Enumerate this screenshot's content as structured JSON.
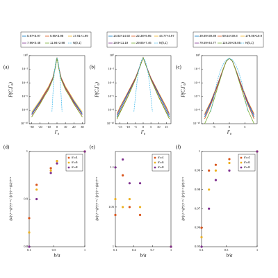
{
  "chart_data": [
    {
      "type": "line",
      "panel_label": "(a)",
      "xlabel": "Γ₀",
      "ylabel": "P(C,Γ₀)",
      "yscale": "log",
      "xlim": [
        -33,
        33
      ],
      "xticks": [
        -30,
        -20,
        -10,
        0,
        10,
        20,
        30
      ],
      "ylim": [
        1e-10,
        1
      ],
      "yticks": [
        {
          "value": 1e-10,
          "label": "10⁻¹⁰"
        },
        {
          "value": 1e-08,
          "label": "10⁻⁸"
        },
        {
          "value": 1e-06,
          "label": "10⁻⁶"
        },
        {
          "value": 0.0001,
          "label": "10⁻⁴"
        },
        {
          "value": 0.01,
          "label": "10⁻²"
        },
        {
          "value": 1,
          "label": "10⁰"
        }
      ],
      "series": [
        {
          "name": "5.97×5.97",
          "color": "#0072bd",
          "x": [
            -30,
            -20,
            -15,
            -10,
            -5,
            -2,
            0,
            2,
            5,
            10,
            15,
            20,
            30
          ],
          "values": [
            3e-09,
            2e-07,
            2e-06,
            2e-05,
            0.0005,
            0.02,
            0.5,
            0.02,
            0.0005,
            2e-05,
            2e-06,
            2e-07,
            3e-09
          ]
        },
        {
          "name": "6.95×3.98",
          "color": "#d95319",
          "x": [
            -30,
            -20,
            -15,
            -10,
            -5,
            -2,
            0,
            2,
            5,
            10,
            15,
            20,
            30
          ],
          "values": [
            1e-09,
            1e-07,
            1.5e-06,
            1.5e-05,
            0.0004,
            0.02,
            0.5,
            0.02,
            0.0004,
            1.5e-05,
            1.5e-06,
            1e-07,
            1e-09
          ]
        },
        {
          "name": "17.91×1.99",
          "color": "#edb120",
          "x": [
            -30,
            -20,
            -15,
            -10,
            -5,
            -2,
            0,
            2,
            5,
            10,
            15,
            20,
            30
          ],
          "values": [
            5e-09,
            3e-07,
            3e-06,
            3e-05,
            0.0006,
            0.02,
            0.5,
            0.02,
            0.0006,
            3e-05,
            3e-06,
            3e-07,
            5e-09
          ]
        },
        {
          "name": "7.96×0.48",
          "color": "#7e2f8e",
          "x": [
            -30,
            -20,
            -15,
            -10,
            -5,
            -2,
            0,
            2,
            5,
            10,
            15,
            20,
            30
          ],
          "values": [
            2e-09,
            1.5e-07,
            2e-06,
            2e-05,
            0.0005,
            0.02,
            0.5,
            0.02,
            0.0005,
            2e-05,
            2e-06,
            1.5e-07,
            2e-09
          ]
        },
        {
          "name": "11.94×2.98",
          "color": "#77ac30",
          "x": [
            -30,
            -20,
            -15,
            -10,
            -5,
            -2,
            0,
            2,
            5,
            10,
            15,
            20,
            30
          ],
          "values": [
            1e-09,
            8e-08,
            1e-06,
            1e-05,
            0.0003,
            0.015,
            0.5,
            0.015,
            0.0003,
            1e-05,
            1e-06,
            8e-08,
            1e-09
          ]
        },
        {
          "name": "N(0,1)",
          "color": "#4dbeee",
          "linestyle": "dashed",
          "x": [
            -6,
            -4,
            -3,
            -2,
            -1,
            0,
            1,
            2,
            3,
            4,
            6
          ],
          "values": [
            6e-09,
            0.00013,
            0.0044,
            0.054,
            0.24,
            0.4,
            0.24,
            0.054,
            0.0044,
            0.00013,
            6e-09
          ]
        }
      ]
    },
    {
      "type": "line",
      "panel_label": "(b)",
      "xlabel": "Γ₀",
      "ylabel": "P(C,Γ₀)",
      "yscale": "log",
      "xlim": [
        -18,
        18
      ],
      "xticks": [
        -15,
        -10,
        -5,
        0,
        5,
        10,
        15
      ],
      "ylim": [
        1e-10,
        1
      ],
      "yticks": [
        {
          "value": 1e-10,
          "label": "10⁻¹⁰"
        },
        {
          "value": 1e-08,
          "label": "10⁻⁸"
        },
        {
          "value": 1e-06,
          "label": "10⁻⁶"
        },
        {
          "value": 0.0001,
          "label": "10⁻⁴"
        },
        {
          "value": 0.01,
          "label": "10⁻²"
        },
        {
          "value": 1,
          "label": "10⁰"
        }
      ],
      "series": [
        {
          "name": "14.92×14.92",
          "color": "#0072bd",
          "x": [
            -17,
            -15,
            -10,
            -5,
            -2,
            0,
            2,
            5,
            10,
            15,
            17
          ],
          "values": [
            1e-09,
            1e-08,
            2e-06,
            0.0005,
            0.03,
            0.5,
            0.03,
            0.0005,
            2e-06,
            1e-08,
            1e-09
          ]
        },
        {
          "name": "22.38×9.95",
          "color": "#d95319",
          "x": [
            -17,
            -15,
            -10,
            -5,
            -2,
            0,
            2,
            5,
            10,
            15,
            17
          ],
          "values": [
            5e-10,
            5e-09,
            1e-06,
            0.0004,
            0.03,
            0.5,
            0.03,
            0.0004,
            1e-06,
            5e-09,
            5e-10
          ]
        },
        {
          "name": "44.77×4.97",
          "color": "#edb120",
          "x": [
            -17,
            -15,
            -10,
            -5,
            -2,
            0,
            2,
            5,
            10,
            15,
            17
          ],
          "values": [
            3e-09,
            3e-08,
            4e-06,
            0.0006,
            0.03,
            0.5,
            0.03,
            0.0006,
            4e-06,
            3e-08,
            3e-09
          ]
        },
        {
          "name": "19.9×11.19",
          "color": "#7e2f8e",
          "x": [
            -17,
            -15,
            -10,
            -5,
            -2,
            0,
            2,
            5,
            10,
            15,
            17
          ],
          "values": [
            2e-09,
            2e-08,
            3e-06,
            0.0005,
            0.03,
            0.5,
            0.03,
            0.0005,
            3e-06,
            2e-08,
            2e-09
          ]
        },
        {
          "name": "29.85×7.46",
          "color": "#77ac30",
          "x": [
            -17,
            -15,
            -10,
            -5,
            -2,
            0,
            2,
            5,
            10,
            15,
            17
          ],
          "values": [
            5e-10,
            4e-09,
            8e-07,
            0.0003,
            0.025,
            0.5,
            0.025,
            0.0003,
            8e-07,
            4e-09,
            5e-10
          ]
        },
        {
          "name": "N(0,1)",
          "color": "#4dbeee",
          "linestyle": "dashed",
          "x": [
            -6,
            -4,
            -3,
            -2,
            -1,
            0,
            1,
            2,
            3,
            4,
            6
          ],
          "values": [
            6e-09,
            0.00013,
            0.0044,
            0.054,
            0.24,
            0.4,
            0.24,
            0.054,
            0.0044,
            0.00013,
            6e-09
          ]
        }
      ]
    },
    {
      "type": "line",
      "panel_label": "(c)",
      "xlabel": "Γ₀",
      "ylabel": "P(C,Γ₀)",
      "yscale": "log",
      "xlim": [
        -9,
        9
      ],
      "xticks": [
        -5,
        0,
        5
      ],
      "ylim": [
        1e-10,
        1
      ],
      "yticks": [
        {
          "value": 1e-10,
          "label": "10⁻¹⁰"
        },
        {
          "value": 1e-08,
          "label": "10⁻⁸"
        },
        {
          "value": 1e-06,
          "label": "10⁻⁶"
        },
        {
          "value": 0.0001,
          "label": "10⁻⁴"
        },
        {
          "value": 0.01,
          "label": "10⁻²"
        },
        {
          "value": 1,
          "label": "10⁰"
        }
      ],
      "series": [
        {
          "name": "39.89×39.89",
          "color": "#0072bd",
          "x": [
            -8,
            -6,
            -4,
            -2,
            -1,
            0,
            1,
            2,
            4,
            6,
            8
          ],
          "values": [
            1e-09,
            1e-07,
            3e-05,
            0.01,
            0.15,
            0.4,
            0.15,
            0.01,
            3e-05,
            1e-07,
            1e-09
          ]
        },
        {
          "name": "69.54×39.8",
          "color": "#d95319",
          "x": [
            -8,
            -6,
            -4,
            -2,
            -1,
            0,
            1,
            2,
            4,
            6,
            8
          ],
          "values": [
            5e-10,
            6e-08,
            2e-05,
            0.009,
            0.15,
            0.4,
            0.15,
            0.009,
            2e-05,
            6e-08,
            5e-10
          ]
        },
        {
          "name": "179.06×19.9",
          "color": "#edb120",
          "x": [
            -8,
            -6,
            -4,
            -2,
            -1,
            0,
            1,
            2,
            4,
            6,
            8
          ],
          "values": [
            3e-09,
            2e-07,
            4e-05,
            0.012,
            0.15,
            0.4,
            0.15,
            0.012,
            4e-05,
            2e-07,
            3e-09
          ]
        },
        {
          "name": "79.59×44.77",
          "color": "#7e2f8e",
          "x": [
            -8,
            -6,
            -4,
            -2,
            -1,
            0,
            1,
            2,
            4,
            6,
            8
          ],
          "values": [
            2e-09,
            1.5e-07,
            3e-05,
            0.01,
            0.15,
            0.4,
            0.15,
            0.01,
            3e-05,
            1.5e-07,
            2e-09
          ]
        },
        {
          "name": "119.39×28.85",
          "color": "#77ac30",
          "x": [
            -8,
            -6,
            -4,
            -2,
            -1,
            0,
            1,
            2,
            4,
            6,
            8
          ],
          "values": [
            1e-10,
            1e-08,
            1e-05,
            0.008,
            0.16,
            0.4,
            0.16,
            0.008,
            1e-05,
            1e-08,
            1e-10
          ]
        },
        {
          "name": "N(0,1)",
          "color": "#4dbeee",
          "linestyle": "dashed",
          "x": [
            -6,
            -4,
            -3,
            -2,
            -1,
            0,
            1,
            2,
            3,
            4,
            6
          ],
          "values": [
            6e-09,
            0.00013,
            0.0044,
            0.054,
            0.24,
            0.4,
            0.24,
            0.054,
            0.0044,
            0.00013,
            6e-09
          ]
        }
      ]
    },
    {
      "type": "scatter",
      "panel_label": "(d)",
      "xlabel": "b/a",
      "ylabel": "⟨|C|⁴⟩¹ᐟ⁴⟨|Γ|²⟩¹ᐟ² / ⟨|Γ|⁴⟩¹ᐟ⁴⟨|C|²⟩¹ᐟ²",
      "legend": "upper right",
      "xlim": [
        0.1,
        1
      ],
      "xticks": [
        0.1,
        0.5,
        1
      ],
      "ylim": [
        0.8,
        1
      ],
      "yticks": [
        0.8,
        0.9,
        1
      ],
      "x": [
        0.1,
        0.22,
        0.45,
        0.55,
        1
      ],
      "series": [
        {
          "name": "m=4",
          "color": "#d95319",
          "values": [
            0.86,
            0.93,
            0.965,
            0.98,
            1
          ]
        },
        {
          "name": "m=6",
          "color": "#edb120",
          "values": [
            0.83,
            0.92,
            0.96,
            0.98,
            1
          ]
        },
        {
          "name": "m=8",
          "color": "#7e2f8e",
          "values": [
            0.8,
            0.9,
            0.955,
            0.975,
            1
          ]
        }
      ]
    },
    {
      "type": "scatter",
      "panel_label": "(e)",
      "xlabel": "b/a",
      "ylabel": "⟨|C|⁴⟩¹ᐟ⁴⟨|Γ|²⟩¹ᐟ² / ⟨|Γ|⁴⟩¹ᐟ⁴⟨|C|²⟩¹ᐟ²",
      "legend": "upper right",
      "xlim": [
        0.1,
        1
      ],
      "xticks": [
        0.1,
        0.4,
        0.7,
        1
      ],
      "ylim": [
        1,
        1.12
      ],
      "yticks": [
        1,
        1.05,
        1.1
      ],
      "x": [
        0.1,
        0.22,
        0.33,
        0.5,
        1
      ],
      "series": [
        {
          "name": "m=4",
          "color": "#d95319",
          "values": [
            1.04,
            1.09,
            1.05,
            1.04,
            1
          ]
        },
        {
          "name": "m=6",
          "color": "#edb120",
          "values": [
            1.06,
            1.05,
            1.06,
            1.05,
            1
          ]
        },
        {
          "name": "m=8",
          "color": "#7e2f8e",
          "values": [
            1.1,
            1.11,
            1.08,
            1.08,
            1
          ]
        }
      ]
    },
    {
      "type": "scatter",
      "panel_label": "(f)",
      "xlabel": "b/a",
      "ylabel": "⟨|C|⁴⟩¹ᐟ⁴⟨|Γ|²⟩¹ᐟ² / ⟨|Γ|⁴⟩¹ᐟ⁴⟨|C|²⟩¹ᐟ²",
      "legend": "upper right",
      "xlim": [
        0.1,
        1
      ],
      "xticks": [
        0.1,
        0.5,
        1
      ],
      "ylim": [
        0.95,
        1
      ],
      "yticks": [
        0.95,
        0.96,
        0.97,
        0.98,
        0.99,
        1
      ],
      "x": [
        0.1,
        0.22,
        0.33,
        0.55,
        1
      ],
      "series": [
        {
          "name": "m=4",
          "color": "#d95319",
          "values": [
            0.96,
            0.99,
            0.993,
            0.996,
            1
          ]
        },
        {
          "name": "m=6",
          "color": "#edb120",
          "values": [
            0.955,
            0.98,
            0.99,
            0.994,
            1
          ]
        },
        {
          "name": "m=8",
          "color": "#7e2f8e",
          "values": [
            0.95,
            0.97,
            0.985,
            0.99,
            1
          ]
        }
      ]
    }
  ]
}
